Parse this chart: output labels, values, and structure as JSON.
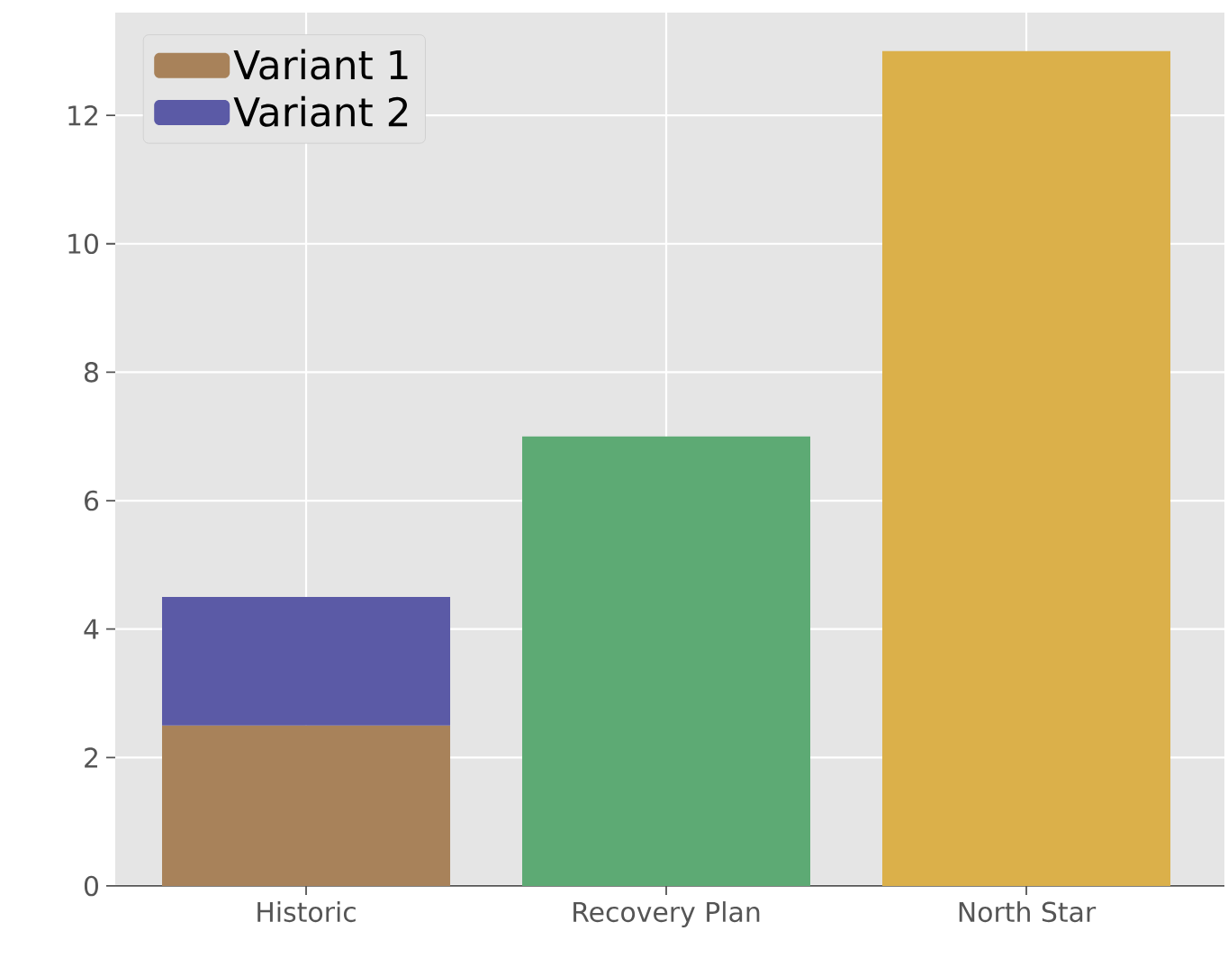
{
  "chart_data": {
    "type": "bar",
    "stacked": true,
    "categories": [
      "Historic",
      "Recovery Plan",
      "North Star"
    ],
    "series": [
      {
        "name": "Variant 1",
        "color": "#a8825a",
        "colors": [
          "#a8825a",
          "#5daa74",
          "#dbb04a"
        ],
        "values": [
          2.5,
          7,
          13
        ]
      },
      {
        "name": "Variant 2",
        "color": "#5b5aa6",
        "values": [
          2,
          null,
          null
        ]
      }
    ],
    "ylim": [
      0,
      13.6
    ],
    "yticks": [
      0,
      2,
      4,
      6,
      8,
      10,
      12
    ],
    "grid": true,
    "legend": "top left"
  }
}
